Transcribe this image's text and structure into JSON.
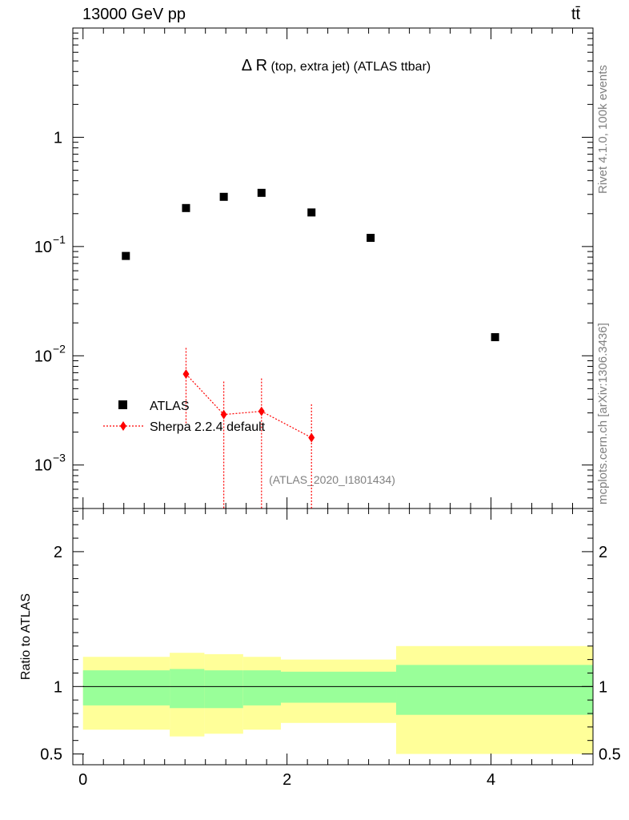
{
  "header": {
    "left": "13000 GeV pp",
    "right": "tt̄"
  },
  "side": {
    "rivet": "Rivet 4.1.0,  100k events",
    "mcplots": "mcplots.cern.ch [arXiv:1306.3436]"
  },
  "colors": {
    "data": "#000000",
    "mc": "#ff0000",
    "band_inner": "#99ff99",
    "band_outer": "#ffff99"
  },
  "chart_data": [
    {
      "type": "scatter",
      "yscale": "log",
      "title_main": "Δ R",
      "title_sub": " (top, extra jet) (ATLAS ttbar)",
      "analysis_label": "(ATLAS_2020_I1801434)",
      "ylim": [
        0.0004,
        10
      ],
      "xlim": [
        -0.1,
        5.0
      ],
      "y_ticks": [
        {
          "value": 1,
          "base": "1",
          "exp": ""
        },
        {
          "value": 0.1,
          "base": "10",
          "exp": "−1"
        },
        {
          "value": 0.01,
          "base": "10",
          "exp": "−2"
        },
        {
          "value": 0.001,
          "base": "10",
          "exp": "−3"
        }
      ],
      "legend": [
        {
          "label": "ATLAS"
        },
        {
          "label": "Sherpa 2.2.4 default"
        }
      ],
      "series": [
        {
          "name": "ATLAS",
          "marker": "square",
          "points": [
            {
              "x": 0.42,
              "y": 0.082
            },
            {
              "x": 1.01,
              "y": 0.225
            },
            {
              "x": 1.38,
              "y": 0.285
            },
            {
              "x": 1.75,
              "y": 0.31
            },
            {
              "x": 2.24,
              "y": 0.205
            },
            {
              "x": 2.82,
              "y": 0.12
            },
            {
              "x": 4.04,
              "y": 0.0148
            }
          ]
        },
        {
          "name": "Sherpa 2.2.4 default",
          "marker": "diamond",
          "points": [
            {
              "x": 1.01,
              "y": 0.0068,
              "ylo": 0.0024,
              "yhi": 0.0118
            },
            {
              "x": 1.38,
              "y": 0.0029,
              "ylo": 1e-05,
              "yhi": 0.0058
            },
            {
              "x": 1.75,
              "y": 0.0031,
              "ylo": 1e-05,
              "yhi": 0.0062
            },
            {
              "x": 2.24,
              "y": 0.00178,
              "ylo": 1e-05,
              "yhi": 0.0036
            }
          ]
        }
      ]
    },
    {
      "type": "area",
      "ylabel": "Ratio to ATLAS",
      "ylim": [
        0.42,
        2.32
      ],
      "xlim": [
        -0.1,
        5.0
      ],
      "x_ticks": [
        "0",
        "2",
        "4"
      ],
      "x_tick_values": [
        0,
        2,
        4
      ],
      "y_ticks": [
        "0.5",
        "1",
        "2"
      ],
      "y_tick_values": [
        0.5,
        1,
        2
      ],
      "reference": 1.0,
      "bins": [
        {
          "x0": 0.0,
          "x1": 0.85,
          "inner_lo": 0.86,
          "inner_hi": 1.12,
          "outer_lo": 0.68,
          "outer_hi": 1.22
        },
        {
          "x0": 0.85,
          "x1": 1.19,
          "inner_lo": 0.84,
          "inner_hi": 1.13,
          "outer_lo": 0.63,
          "outer_hi": 1.25
        },
        {
          "x0": 1.19,
          "x1": 1.57,
          "inner_lo": 0.84,
          "inner_hi": 1.12,
          "outer_lo": 0.65,
          "outer_hi": 1.24
        },
        {
          "x0": 1.57,
          "x1": 1.94,
          "inner_lo": 0.86,
          "inner_hi": 1.12,
          "outer_lo": 0.68,
          "outer_hi": 1.22
        },
        {
          "x0": 1.94,
          "x1": 3.07,
          "inner_lo": 0.88,
          "inner_hi": 1.11,
          "outer_lo": 0.73,
          "outer_hi": 1.2
        },
        {
          "x0": 3.07,
          "x1": 5.0,
          "inner_lo": 0.79,
          "inner_hi": 1.16,
          "outer_lo": 0.5,
          "outer_hi": 1.3
        }
      ]
    }
  ]
}
